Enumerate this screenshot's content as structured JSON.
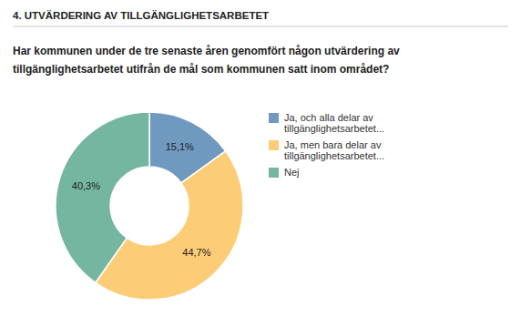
{
  "chart_data": {
    "type": "pie",
    "title": "4. UTVÄRDERING AV TILLGÄNGLIGHETSARBETET",
    "subtitle": "Har kommunen under de tre senaste åren genomfört någon utvärdering av tillgänglighetsarbetet utifrån de mål som kommunen satt inom området?",
    "categories": [
      "Ja, och alla delar av tillgänglighetsarbetet...",
      "Ja, men bara delar av tillgänglighetsarbetet...",
      "Nej"
    ],
    "values": [
      15.1,
      44.7,
      40.3
    ],
    "value_labels": [
      "15,1%",
      "44,7%",
      "40,3%"
    ],
    "colors": [
      "#7099c0",
      "#fdcc77",
      "#74b69f"
    ],
    "data_labels": true,
    "legend": "right"
  }
}
